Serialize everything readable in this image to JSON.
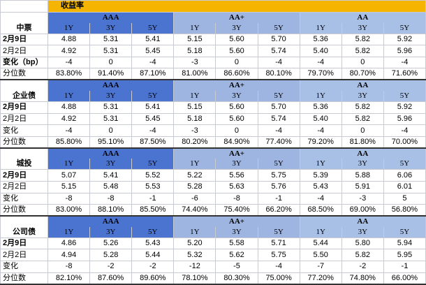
{
  "title": "收益率",
  "grades": [
    "AAA",
    "AA+",
    "AA"
  ],
  "tenors": [
    "1Y",
    "3Y",
    "5Y"
  ],
  "sections": [
    {
      "name": "中票",
      "rows": [
        {
          "label": "2月9日",
          "bold": true,
          "values": [
            "4.88",
            "5.31",
            "5.41",
            "5.15",
            "5.60",
            "5.70",
            "5.36",
            "5.82",
            "5.92"
          ]
        },
        {
          "label": "2月2日",
          "bold": false,
          "values": [
            "4.92",
            "5.31",
            "5.45",
            "5.18",
            "5.60",
            "5.74",
            "5.40",
            "5.82",
            "5.96"
          ]
        },
        {
          "label": "变化（bp）",
          "bold": true,
          "values": [
            "-4",
            "0",
            "-4",
            "-3",
            "0",
            "-4",
            "-4",
            "0",
            "-4"
          ]
        },
        {
          "label": "分位数",
          "bold": false,
          "values": [
            "83.80%",
            "91.40%",
            "87.10%",
            "81.00%",
            "86.60%",
            "80.10%",
            "79.70%",
            "80.70%",
            "71.60%"
          ]
        }
      ]
    },
    {
      "name": "企业债",
      "rows": [
        {
          "label": "2月9日",
          "bold": true,
          "values": [
            "4.88",
            "5.31",
            "5.41",
            "5.15",
            "5.60",
            "5.70",
            "5.36",
            "5.82",
            "5.92"
          ]
        },
        {
          "label": "2月2日",
          "bold": false,
          "values": [
            "4.92",
            "5.31",
            "5.45",
            "5.18",
            "5.60",
            "5.74",
            "5.40",
            "5.82",
            "5.96"
          ]
        },
        {
          "label": "变化",
          "bold": false,
          "values": [
            "-4",
            "0",
            "-4",
            "-3",
            "0",
            "-4",
            "-4",
            "0",
            "-4"
          ]
        },
        {
          "label": "分位数",
          "bold": false,
          "values": [
            "85.80%",
            "95.10%",
            "87.50%",
            "80.20%",
            "84.90%",
            "77.40%",
            "79.20%",
            "81.80%",
            "70.00%"
          ]
        }
      ]
    },
    {
      "name": "城投",
      "rows": [
        {
          "label": "2月9日",
          "bold": true,
          "values": [
            "5.07",
            "5.41",
            "5.52",
            "5.22",
            "5.56",
            "5.75",
            "5.39",
            "5.88",
            "6.06"
          ]
        },
        {
          "label": "2月2日",
          "bold": false,
          "values": [
            "5.15",
            "5.48",
            "5.53",
            "5.28",
            "5.63",
            "5.76",
            "5.43",
            "5.91",
            "6.01"
          ]
        },
        {
          "label": "变化",
          "bold": false,
          "values": [
            "-8",
            "-8",
            "-1",
            "-6",
            "-8",
            "-1",
            "-4",
            "-3",
            "5"
          ]
        },
        {
          "label": "分位数",
          "bold": false,
          "values": [
            "83.00%",
            "88.10%",
            "85.50%",
            "74.40%",
            "75.40%",
            "66.20%",
            "68.50%",
            "69.00%",
            "56.80%"
          ]
        }
      ]
    },
    {
      "name": "公司债",
      "rows": [
        {
          "label": "2月9日",
          "bold": true,
          "values": [
            "4.86",
            "5.26",
            "5.43",
            "5.20",
            "5.58",
            "5.71",
            "5.44",
            "5.80",
            "5.94"
          ]
        },
        {
          "label": "2月2日",
          "bold": false,
          "values": [
            "4.94",
            "5.28",
            "5.44",
            "5.32",
            "5.62",
            "5.75",
            "5.50",
            "5.82",
            "5.95"
          ]
        },
        {
          "label": "变化",
          "bold": false,
          "values": [
            "-8",
            "-2",
            "-2",
            "-12",
            "-5",
            "-4",
            "-7",
            "-2",
            "-1"
          ]
        },
        {
          "label": "分位数",
          "bold": false,
          "values": [
            "82.10%",
            "87.60%",
            "89.60%",
            "78.10%",
            "80.30%",
            "75.00%",
            "77.20%",
            "74.80%",
            "66.00%"
          ]
        }
      ]
    }
  ]
}
